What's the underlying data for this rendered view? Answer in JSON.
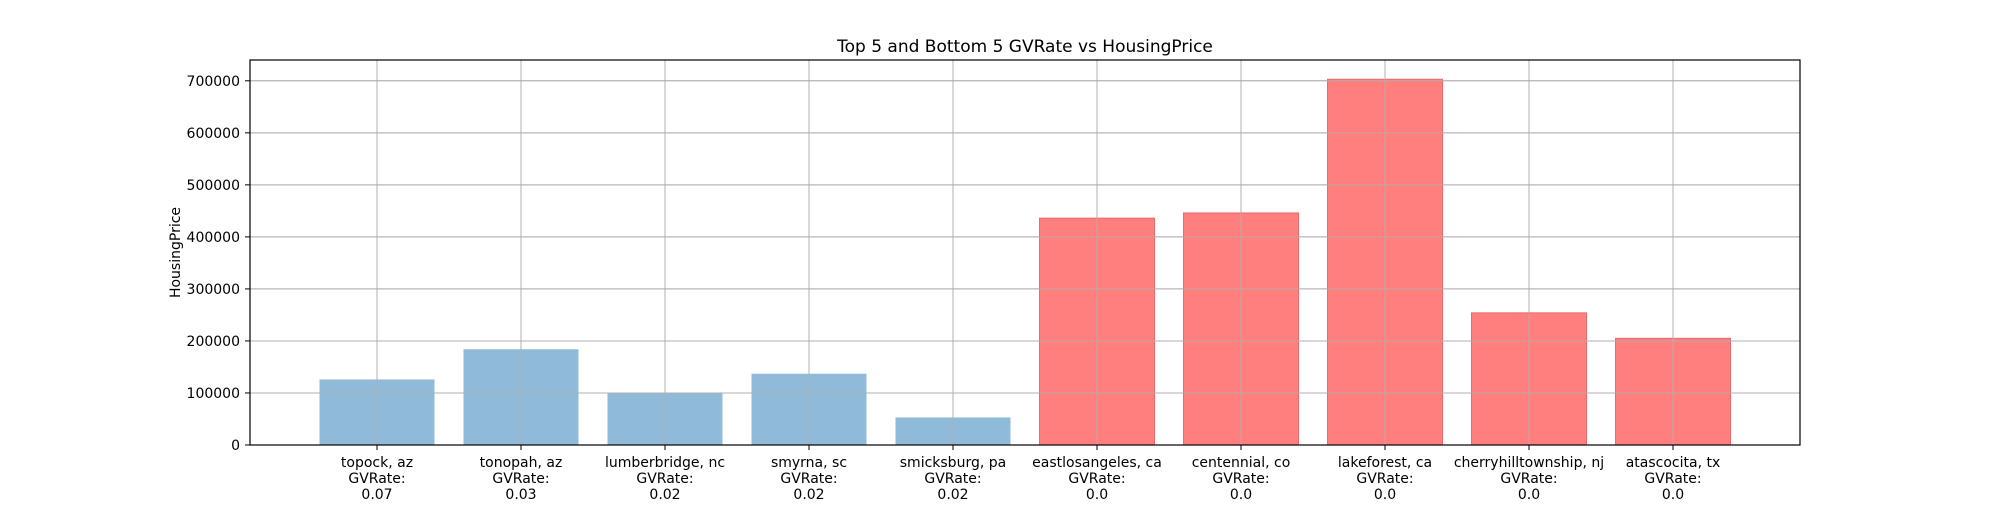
{
  "chart_data": {
    "type": "bar",
    "title": "Top 5 and Bottom 5 GVRate vs HousingPrice",
    "xlabel": "",
    "ylabel": "HousingPrice",
    "ylim": [
      0,
      740000
    ],
    "yticks": [
      0,
      100000,
      200000,
      300000,
      400000,
      500000,
      600000,
      700000
    ],
    "grid": true,
    "legend": "none",
    "categories": [
      [
        "topock, az",
        "GVRate:",
        "0.07"
      ],
      [
        "tonopah, az",
        "GVRate:",
        "0.03"
      ],
      [
        "lumberbridge, nc",
        "GVRate:",
        "0.02"
      ],
      [
        "smyrna, sc",
        "GVRate:",
        "0.02"
      ],
      [
        "smicksburg, pa",
        "GVRate:",
        "0.02"
      ],
      [
        "eastlosangeles, ca",
        "GVRate:",
        "0.0"
      ],
      [
        "centennial, co",
        "GVRate:",
        "0.0"
      ],
      [
        "lakeforest, ca",
        "GVRate:",
        "0.0"
      ],
      [
        "cherryhilltownship, nj",
        "GVRate:",
        "0.0"
      ],
      [
        "atascocita, tx",
        "GVRate:",
        "0.0"
      ]
    ],
    "values": [
      126000,
      184000,
      99000,
      137000,
      53000,
      436000,
      446000,
      703000,
      254000,
      205000
    ],
    "bar_groups": [
      "top",
      "top",
      "top",
      "top",
      "top",
      "bottom",
      "bottom",
      "bottom",
      "bottom",
      "bottom"
    ],
    "colors": {
      "top": "#8fbad8",
      "bottom": "#ff7f7f",
      "bottom_edge": "#e86a6a"
    }
  }
}
